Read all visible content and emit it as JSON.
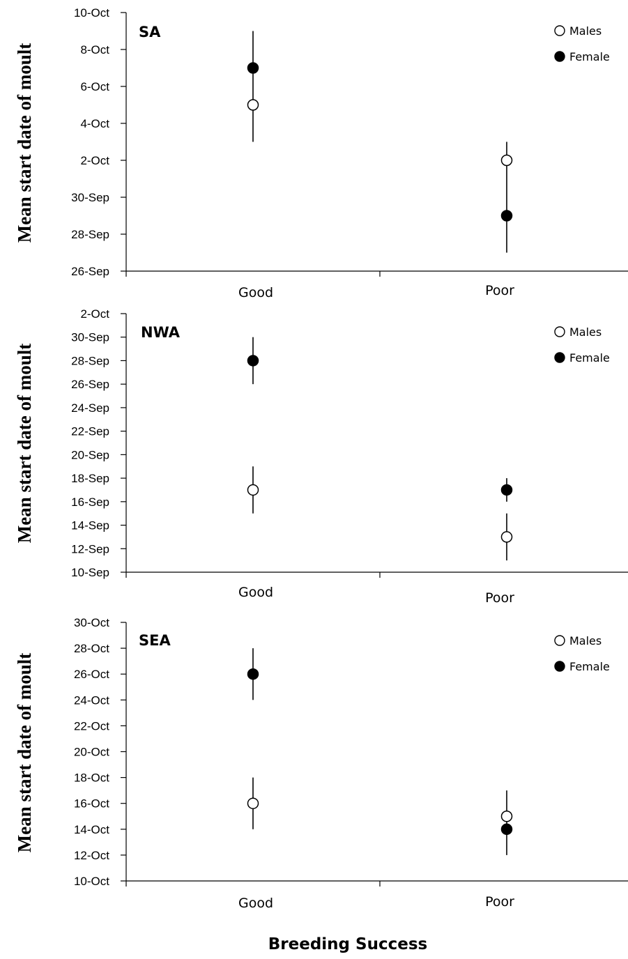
{
  "chart_data": [
    {
      "type": "scatter",
      "panel_label": "SA",
      "ylabel": "Mean start date of moult",
      "categories": [
        "Good",
        "Poor"
      ],
      "ylim": [
        "2009-09-26",
        "2009-10-10"
      ],
      "yticks": [
        "2009-09-26",
        "2009-09-28",
        "2009-09-30",
        "2009-10-02",
        "2009-10-04",
        "2009-10-06",
        "2009-10-08",
        "2009-10-10"
      ],
      "ytick_labels": [
        "26-Sep",
        "28-Sep",
        "30-Sep",
        "2-Oct",
        "4-Oct",
        "6-Oct",
        "8-Oct",
        "10-Oct"
      ],
      "legend_position": "top-right",
      "series": [
        {
          "name": "Males",
          "marker": "open-circle",
          "values": [
            "2009-10-05",
            "2009-10-02"
          ]
        },
        {
          "name": "Female",
          "marker": "filled-circle",
          "values": [
            "2009-10-07",
            "2009-09-29"
          ]
        }
      ],
      "error_bars": [
        {
          "category": "Good",
          "low": "2009-10-03",
          "high": "2009-10-09"
        },
        {
          "category": "Poor",
          "low": "2009-09-27",
          "high": "2009-10-03"
        }
      ]
    },
    {
      "type": "scatter",
      "panel_label": "NWA",
      "ylabel": "Mean start date of moult",
      "categories": [
        "Good",
        "Poor"
      ],
      "ylim": [
        "2009-09-10",
        "2009-10-02"
      ],
      "yticks": [
        "2009-09-10",
        "2009-09-12",
        "2009-09-14",
        "2009-09-16",
        "2009-09-18",
        "2009-09-20",
        "2009-09-22",
        "2009-09-24",
        "2009-09-26",
        "2009-09-28",
        "2009-09-30",
        "2009-10-02"
      ],
      "ytick_labels": [
        "10-Sep",
        "12-Sep",
        "14-Sep",
        "16-Sep",
        "18-Sep",
        "20-Sep",
        "22-Sep",
        "24-Sep",
        "26-Sep",
        "28-Sep",
        "30-Sep",
        "2-Oct"
      ],
      "legend_position": "top-right",
      "series": [
        {
          "name": "Males",
          "marker": "open-circle",
          "values": [
            "2009-09-17",
            "2009-09-13"
          ]
        },
        {
          "name": "Female",
          "marker": "filled-circle",
          "values": [
            "2009-09-28",
            "2009-09-17"
          ]
        }
      ],
      "error_bars": [
        {
          "category": "Good",
          "low": "2009-09-15",
          "high": "2009-09-19"
        },
        {
          "category": "Good",
          "low": "2009-09-26",
          "high": "2009-09-30"
        },
        {
          "category": "Poor",
          "low": "2009-09-11",
          "high": "2009-09-15"
        },
        {
          "category": "Poor",
          "low": "2009-09-16",
          "high": "2009-09-18"
        }
      ]
    },
    {
      "type": "scatter",
      "panel_label": "SEA",
      "ylabel": "Mean start date of moult",
      "categories": [
        "Good",
        "Poor"
      ],
      "ylim": [
        "2009-10-10",
        "2009-10-30"
      ],
      "yticks": [
        "2009-10-10",
        "2009-10-12",
        "2009-10-14",
        "2009-10-16",
        "2009-10-18",
        "2009-10-20",
        "2009-10-22",
        "2009-10-24",
        "2009-10-26",
        "2009-10-28",
        "2009-10-30"
      ],
      "ytick_labels": [
        "10-Oct",
        "12-Oct",
        "14-Oct",
        "16-Oct",
        "18-Oct",
        "20-Oct",
        "22-Oct",
        "24-Oct",
        "26-Oct",
        "28-Oct",
        "30-Oct"
      ],
      "legend_position": "top-right",
      "series": [
        {
          "name": "Males",
          "marker": "open-circle",
          "values": [
            "2009-10-16",
            "2009-10-15"
          ]
        },
        {
          "name": "Female",
          "marker": "filled-circle",
          "values": [
            "2009-10-26",
            "2009-10-14"
          ]
        }
      ],
      "error_bars": [
        {
          "category": "Good",
          "low": "2009-10-14",
          "high": "2009-10-18"
        },
        {
          "category": "Good",
          "low": "2009-10-24",
          "high": "2009-10-28"
        },
        {
          "category": "Poor",
          "low": "2009-10-12",
          "high": "2009-10-17"
        }
      ]
    }
  ],
  "xlabel": "Breeding Success",
  "colors": {
    "marker_stroke": "#000000",
    "female_fill": "#000000",
    "male_fill": "#ffffff"
  }
}
